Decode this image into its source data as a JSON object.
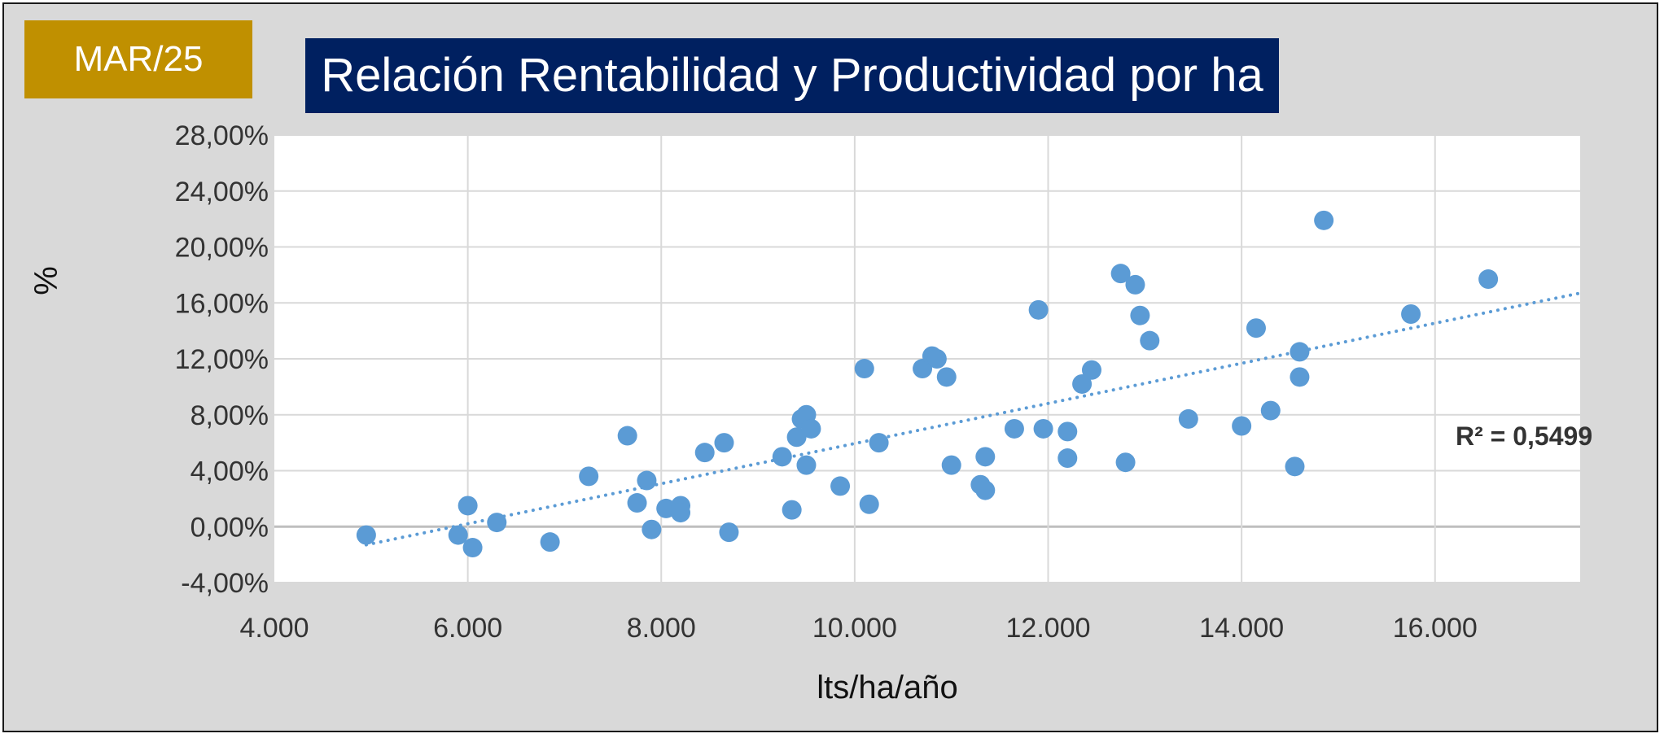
{
  "badge": {
    "label": "MAR/25",
    "color": "#c09000"
  },
  "header": {
    "title": "Relación Rentabilidad y Productividad por ha",
    "color": "#002060"
  },
  "chart_data": {
    "type": "scatter",
    "title": "Relación Rentabilidad y Productividad por ha",
    "xlabel": "lts/ha/año",
    "ylabel": "%",
    "xlim": [
      4000,
      17500
    ],
    "ylim": [
      -4,
      28
    ],
    "x_ticks": [
      4000,
      6000,
      8000,
      10000,
      12000,
      14000,
      16000
    ],
    "x_tick_labels": [
      "4.000",
      "6.000",
      "8.000",
      "10.000",
      "12.000",
      "14.000",
      "16.000"
    ],
    "y_ticks": [
      -4,
      0,
      4,
      8,
      12,
      16,
      20,
      24,
      28
    ],
    "y_tick_labels": [
      "-4,00%",
      "0,00%",
      "4,00%",
      "8,00%",
      "12,00%",
      "16,00%",
      "20,00%",
      "24,00%",
      "28,00%"
    ],
    "grid": true,
    "marker_color": "#5b9bd5",
    "trendline": {
      "type": "linear",
      "x0": 4950,
      "y0": -1.3,
      "x1": 17500,
      "y1": 16.7,
      "label": "R² = 0,5499"
    },
    "points": [
      {
        "x": 4950,
        "y": -0.6
      },
      {
        "x": 5900,
        "y": -0.6
      },
      {
        "x": 6000,
        "y": 1.5
      },
      {
        "x": 6050,
        "y": -1.5
      },
      {
        "x": 6300,
        "y": 0.3
      },
      {
        "x": 6850,
        "y": -1.1
      },
      {
        "x": 7250,
        "y": 3.6
      },
      {
        "x": 7650,
        "y": 6.5
      },
      {
        "x": 7750,
        "y": 1.7
      },
      {
        "x": 7850,
        "y": 3.3
      },
      {
        "x": 7900,
        "y": -0.2
      },
      {
        "x": 8050,
        "y": 1.3
      },
      {
        "x": 8200,
        "y": 1.5
      },
      {
        "x": 8200,
        "y": 1.0
      },
      {
        "x": 8450,
        "y": 5.3
      },
      {
        "x": 8650,
        "y": 6.0
      },
      {
        "x": 8700,
        "y": -0.4
      },
      {
        "x": 9250,
        "y": 5.0
      },
      {
        "x": 9350,
        "y": 1.2
      },
      {
        "x": 9400,
        "y": 6.4
      },
      {
        "x": 9450,
        "y": 7.7
      },
      {
        "x": 9500,
        "y": 8.0
      },
      {
        "x": 9500,
        "y": 4.4
      },
      {
        "x": 9550,
        "y": 7.0
      },
      {
        "x": 9850,
        "y": 2.9
      },
      {
        "x": 10100,
        "y": 11.3
      },
      {
        "x": 10150,
        "y": 1.6
      },
      {
        "x": 10250,
        "y": 6.0
      },
      {
        "x": 10700,
        "y": 11.3
      },
      {
        "x": 10800,
        "y": 12.2
      },
      {
        "x": 10850,
        "y": 12.0
      },
      {
        "x": 10950,
        "y": 10.7
      },
      {
        "x": 11000,
        "y": 4.4
      },
      {
        "x": 11300,
        "y": 3.0
      },
      {
        "x": 11350,
        "y": 2.6
      },
      {
        "x": 11350,
        "y": 5.0
      },
      {
        "x": 11650,
        "y": 7.0
      },
      {
        "x": 11900,
        "y": 15.5
      },
      {
        "x": 11950,
        "y": 7.0
      },
      {
        "x": 12200,
        "y": 6.8
      },
      {
        "x": 12200,
        "y": 4.9
      },
      {
        "x": 12350,
        "y": 10.2
      },
      {
        "x": 12450,
        "y": 11.2
      },
      {
        "x": 12750,
        "y": 18.1
      },
      {
        "x": 12800,
        "y": 4.6
      },
      {
        "x": 12900,
        "y": 17.3
      },
      {
        "x": 12950,
        "y": 15.1
      },
      {
        "x": 13050,
        "y": 13.3
      },
      {
        "x": 13450,
        "y": 7.7
      },
      {
        "x": 14000,
        "y": 7.2
      },
      {
        "x": 14150,
        "y": 14.2
      },
      {
        "x": 14300,
        "y": 8.3
      },
      {
        "x": 14550,
        "y": 4.3
      },
      {
        "x": 14600,
        "y": 12.5
      },
      {
        "x": 14600,
        "y": 10.7
      },
      {
        "x": 14850,
        "y": 21.9
      },
      {
        "x": 15750,
        "y": 15.2
      },
      {
        "x": 16550,
        "y": 17.7
      }
    ]
  }
}
